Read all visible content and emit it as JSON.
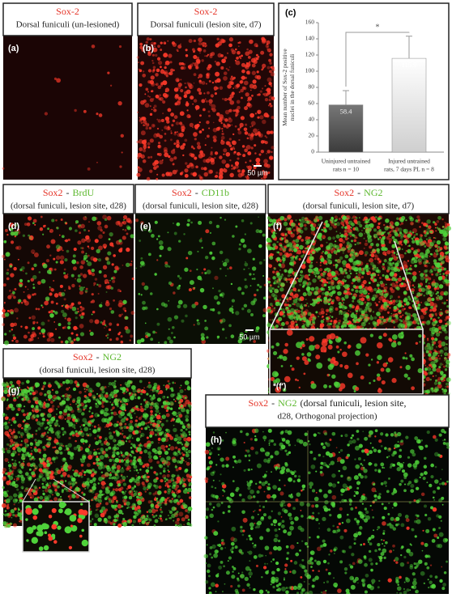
{
  "panels": [
    {
      "label": "(a)",
      "title": [
        {
          "text": "Sox-2",
          "color": "#e53327"
        }
      ],
      "subtitle": "Dorsal funiculi (un-lesioned)"
    },
    {
      "label": "(b)",
      "title": [
        {
          "text": "Sox-2",
          "color": "#e53327"
        }
      ],
      "subtitle": "Dorsal funiculi (lesion site, d7)",
      "scale": "50 µm"
    },
    {
      "label": "(d)",
      "title": [
        {
          "text": "Sox2",
          "color": "#e53327"
        },
        {
          "text": "-",
          "color": "#222222"
        },
        {
          "text": "BrdU",
          "color": "#5cb82e"
        }
      ],
      "subtitle": "(dorsal funiculi, lesion site, d28)"
    },
    {
      "label": "(e)",
      "title": [
        {
          "text": "Sox2",
          "color": "#e53327"
        },
        {
          "text": "-",
          "color": "#222222"
        },
        {
          "text": "CD11b",
          "color": "#5cb82e"
        }
      ],
      "subtitle": "(dorsal funiculi, lesion site, d28)",
      "scale": "50 µm"
    },
    {
      "label": "(f)",
      "title": [
        {
          "text": "Sox2",
          "color": "#e53327"
        },
        {
          "text": "-",
          "color": "#222222"
        },
        {
          "text": "NG2",
          "color": "#5cb82e"
        }
      ],
      "subtitle": "(dorsal funiculi, lesion site, d7)",
      "inset": "*(f′)"
    },
    {
      "label": "(g)",
      "title": [
        {
          "text": "Sox2",
          "color": "#e53327"
        },
        {
          "text": "-",
          "color": "#222222"
        },
        {
          "text": "NG2",
          "color": "#5cb82e"
        }
      ],
      "subtitle": "(dorsal funiculi, lesion site, d28)"
    },
    {
      "label": "(h)",
      "title": [
        {
          "text": "Sox2",
          "color": "#e53327"
        },
        {
          "text": "-",
          "color": "#222222"
        },
        {
          "text": "NG2",
          "color": "#5cb82e"
        },
        {
          "text": "(dorsal funiculi, lesion site,",
          "color": "#222222"
        }
      ],
      "subtitle": "d28, Orthogonal projection)"
    }
  ],
  "chart_data": {
    "type": "bar",
    "label": "(c)",
    "y_label": [
      "Mean number of Sox-2 positive",
      "nuclei in the dorsal funiculi"
    ],
    "categories": [
      [
        "Uninjured untrained",
        "rats n = 10"
      ],
      [
        "Injured untrained",
        "rats, 7 days PL n = 8"
      ]
    ],
    "values": [
      58.4,
      115.9
    ],
    "errors": [
      17.6,
      27.4
    ],
    "colors": [
      "#3c3c3c",
      "#cfcfcf"
    ],
    "ylim": [
      0,
      160
    ],
    "yticks": [
      0,
      20,
      40,
      60,
      80,
      100,
      120,
      140,
      160
    ],
    "significance": "*"
  }
}
